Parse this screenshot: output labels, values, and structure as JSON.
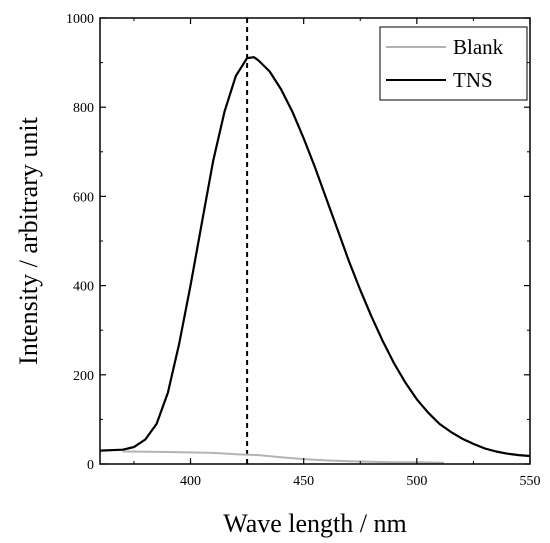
{
  "chart_data": {
    "type": "line",
    "title": "",
    "xlabel": "Wave length / nm",
    "ylabel": "Intensity / arbitrary unit",
    "xlim": [
      360,
      550
    ],
    "ylim": [
      0,
      1000
    ],
    "xticks": [
      400,
      450,
      500,
      550
    ],
    "yticks": [
      0,
      200,
      400,
      600,
      800,
      1000
    ],
    "grid": false,
    "legend_position": "top-right",
    "reference_line": {
      "x": 425,
      "style": "dashed",
      "color": "#000000"
    },
    "series": [
      {
        "name": "Blank",
        "color": "#b3b3b3",
        "points": [
          [
            370,
            28
          ],
          [
            390,
            27
          ],
          [
            410,
            25
          ],
          [
            420,
            22
          ],
          [
            430,
            20
          ],
          [
            440,
            15
          ],
          [
            450,
            11
          ],
          [
            460,
            8
          ],
          [
            470,
            6
          ],
          [
            480,
            5
          ],
          [
            490,
            4
          ],
          [
            500,
            4
          ],
          [
            512,
            3
          ]
        ]
      },
      {
        "name": "TNS",
        "color": "#000000",
        "points": [
          [
            360,
            30
          ],
          [
            370,
            32
          ],
          [
            375,
            38
          ],
          [
            380,
            55
          ],
          [
            385,
            90
          ],
          [
            390,
            160
          ],
          [
            395,
            270
          ],
          [
            400,
            400
          ],
          [
            405,
            540
          ],
          [
            410,
            680
          ],
          [
            415,
            790
          ],
          [
            420,
            870
          ],
          [
            425,
            910
          ],
          [
            428,
            912
          ],
          [
            430,
            905
          ],
          [
            435,
            880
          ],
          [
            440,
            840
          ],
          [
            445,
            790
          ],
          [
            450,
            730
          ],
          [
            455,
            665
          ],
          [
            460,
            595
          ],
          [
            465,
            525
          ],
          [
            470,
            455
          ],
          [
            475,
            390
          ],
          [
            480,
            330
          ],
          [
            485,
            275
          ],
          [
            490,
            225
          ],
          [
            495,
            182
          ],
          [
            500,
            145
          ],
          [
            505,
            115
          ],
          [
            510,
            90
          ],
          [
            515,
            72
          ],
          [
            520,
            57
          ],
          [
            525,
            45
          ],
          [
            530,
            35
          ],
          [
            535,
            28
          ],
          [
            540,
            23
          ],
          [
            545,
            20
          ],
          [
            550,
            18
          ]
        ]
      }
    ]
  }
}
